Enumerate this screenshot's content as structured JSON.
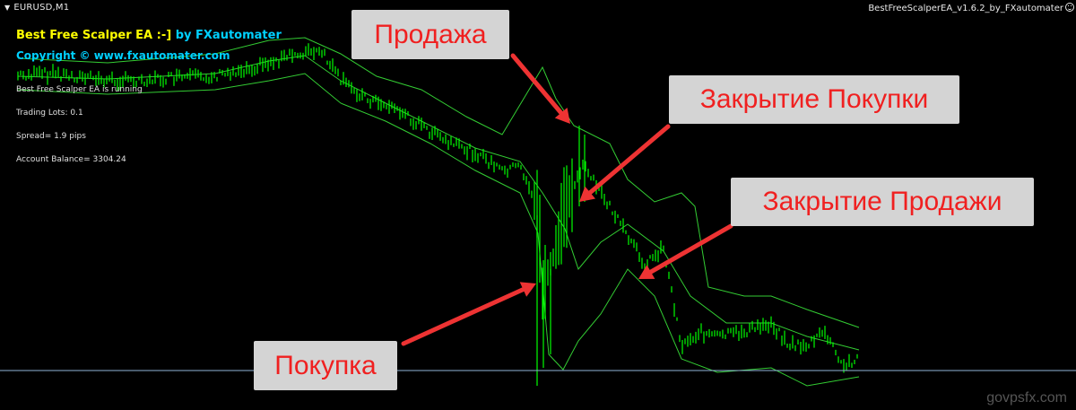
{
  "chart_header": {
    "symbol": "EURUSD,M1",
    "ea_name": "BestFreeScalperEA_v1.6.2_by_FXautomater"
  },
  "ea_info": {
    "title_part1": "Best Free Scalper EA :-]",
    "title_part2": " by FXautomater",
    "copyright": "Copyright © www.fxautomater.com",
    "status": "Best Free Scalper EA is running",
    "trading_lots": "Trading Lots:  0.1",
    "spread": "Spread= 1.9 pips",
    "account_balance": "Account Balance= 3304.24"
  },
  "annotations": {
    "sell": "Продажа",
    "close_buy": "Закрытие Покупки",
    "close_sell": "Закрытие Продажи",
    "buy": "Покупка"
  },
  "watermark": "govpsfx.com",
  "colors": {
    "background": "#000000",
    "bars": "#00ff00",
    "bands": "#33cc33",
    "arrows": "#ee3333",
    "annotation_bg": "#d4d4d4",
    "annotation_text": "#f02020",
    "horizontal_line": "#8fb3d9"
  }
}
